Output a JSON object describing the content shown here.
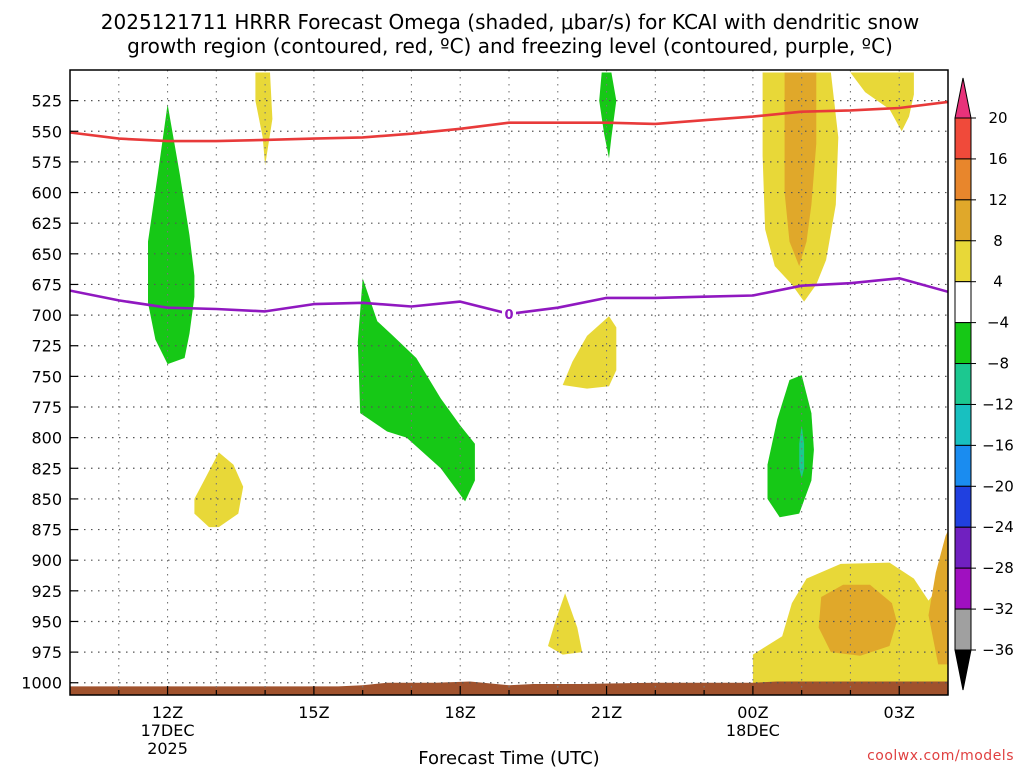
{
  "chart_data": {
    "type": "contour",
    "title_line1": "2025121711 HRRR Forecast Omega (shaded, μbar/s) for KCAI with dendritic snow",
    "title_line2": "growth region (contoured, red, ºC) and freezing level (contoured, purple, ºC)",
    "xlabel": "Forecast Time (UTC)",
    "credit": "coolwx.com/models",
    "x_range_hours": [
      10.0,
      28.0
    ],
    "y_range_mb": [
      500,
      1010
    ],
    "y_ticks": [
      525,
      550,
      575,
      600,
      625,
      650,
      675,
      700,
      725,
      750,
      775,
      800,
      825,
      850,
      875,
      900,
      925,
      950,
      975,
      1000
    ],
    "x_ticks": [
      {
        "h": 12,
        "label": "12Z",
        "sub1": "17DEC",
        "sub2": "2025"
      },
      {
        "h": 15,
        "label": "15Z",
        "sub1": "",
        "sub2": ""
      },
      {
        "h": 18,
        "label": "18Z",
        "sub1": "",
        "sub2": ""
      },
      {
        "h": 21,
        "label": "21Z",
        "sub1": "",
        "sub2": ""
      },
      {
        "h": 24,
        "label": "00Z",
        "sub1": "18DEC",
        "sub2": ""
      },
      {
        "h": 27,
        "label": "03Z",
        "sub1": "",
        "sub2": ""
      }
    ],
    "colorbar": {
      "labels": [
        "20",
        "16",
        "12",
        "8",
        "4",
        "−4",
        "−8",
        "−12",
        "−16",
        "−20",
        "−24",
        "−28",
        "−32",
        "−36"
      ],
      "colors": [
        "#e8327a",
        "#f04a3a",
        "#e8862c",
        "#e0a82a",
        "#e8d838",
        "#ffffff",
        "#16c816",
        "#1cc890",
        "#18c0c0",
        "#1a8cf0",
        "#2040e0",
        "#7020c0",
        "#a010c0",
        "#a0a0a0",
        "#000000"
      ]
    },
    "series": [
      {
        "name": "DGZ boundary (red, ºC)",
        "color": "#e83a3a",
        "points": [
          [
            10.0,
            551
          ],
          [
            11.0,
            556
          ],
          [
            12.0,
            558
          ],
          [
            13.0,
            558
          ],
          [
            14.0,
            557
          ],
          [
            15.0,
            556
          ],
          [
            16.0,
            555
          ],
          [
            17.0,
            552
          ],
          [
            18.0,
            548
          ],
          [
            19.0,
            543
          ],
          [
            20.0,
            543
          ],
          [
            21.0,
            543
          ],
          [
            22.0,
            544
          ],
          [
            23.0,
            541
          ],
          [
            24.0,
            538
          ],
          [
            25.0,
            534
          ],
          [
            26.0,
            533
          ],
          [
            27.0,
            531
          ],
          [
            28.0,
            526
          ]
        ]
      },
      {
        "name": "Freezing level (purple, ºC)",
        "color": "#9018c0",
        "label": "0",
        "label_h": 19.0,
        "points": [
          [
            10.0,
            680
          ],
          [
            11.0,
            688
          ],
          [
            12.0,
            694
          ],
          [
            13.0,
            695
          ],
          [
            14.0,
            697
          ],
          [
            15.0,
            691
          ],
          [
            16.0,
            690
          ],
          [
            17.0,
            693
          ],
          [
            18.0,
            689
          ],
          [
            19.0,
            699
          ],
          [
            20.0,
            694
          ],
          [
            21.0,
            686
          ],
          [
            22.0,
            686
          ],
          [
            23.0,
            685
          ],
          [
            24.0,
            684
          ],
          [
            25.0,
            676
          ],
          [
            26.0,
            674
          ],
          [
            27.0,
            670
          ],
          [
            28.0,
            681
          ]
        ]
      }
    ],
    "regions": [
      {
        "fill": "#e8d838",
        "pts": [
          [
            12.85,
            873
          ],
          [
            12.55,
            862
          ],
          [
            12.55,
            850
          ],
          [
            12.75,
            835
          ],
          [
            13.05,
            812
          ],
          [
            13.35,
            822
          ],
          [
            13.55,
            840
          ],
          [
            13.45,
            862
          ],
          [
            13.05,
            873
          ]
        ]
      },
      {
        "fill": "#e8d838",
        "pts": [
          [
            13.8,
            502
          ],
          [
            14.1,
            502
          ],
          [
            14.15,
            540
          ],
          [
            14.0,
            578
          ],
          [
            13.95,
            555
          ],
          [
            13.8,
            525
          ]
        ]
      },
      {
        "fill": "#16c816",
        "pts": [
          [
            11.6,
            640
          ],
          [
            11.8,
            585
          ],
          [
            12.0,
            528
          ],
          [
            12.25,
            585
          ],
          [
            12.45,
            635
          ],
          [
            12.55,
            668
          ],
          [
            12.55,
            685
          ],
          [
            12.45,
            715
          ],
          [
            12.35,
            735
          ],
          [
            12.0,
            740
          ],
          [
            11.75,
            720
          ],
          [
            11.6,
            690
          ]
        ]
      },
      {
        "fill": "#16c816",
        "pts": [
          [
            16.0,
            670
          ],
          [
            16.3,
            705
          ],
          [
            16.6,
            716
          ],
          [
            17.1,
            735
          ],
          [
            17.6,
            768
          ],
          [
            18.0,
            790
          ],
          [
            18.3,
            805
          ],
          [
            18.3,
            835
          ],
          [
            18.1,
            852
          ],
          [
            17.6,
            825
          ],
          [
            16.9,
            800
          ],
          [
            16.5,
            795
          ],
          [
            15.95,
            780
          ],
          [
            15.9,
            722
          ]
        ]
      },
      {
        "fill": "#16c816",
        "pts": [
          [
            20.9,
            502
          ],
          [
            21.1,
            502
          ],
          [
            21.2,
            525
          ],
          [
            21.1,
            555
          ],
          [
            21.05,
            572
          ],
          [
            20.95,
            552
          ],
          [
            20.85,
            525
          ]
        ]
      },
      {
        "fill": "#e8d838",
        "pts": [
          [
            20.1,
            757
          ],
          [
            20.3,
            738
          ],
          [
            20.6,
            717
          ],
          [
            21.05,
            701
          ],
          [
            21.2,
            710
          ],
          [
            21.2,
            745
          ],
          [
            21.05,
            758
          ],
          [
            20.6,
            760
          ]
        ]
      },
      {
        "fill": "#e8d838",
        "pts": [
          [
            24.2,
            502
          ],
          [
            25.6,
            502
          ],
          [
            25.75,
            555
          ],
          [
            25.7,
            610
          ],
          [
            25.5,
            655
          ],
          [
            25.3,
            675
          ],
          [
            25.05,
            689
          ],
          [
            24.8,
            675
          ],
          [
            24.45,
            660
          ],
          [
            24.25,
            630
          ],
          [
            24.2,
            570
          ]
        ]
      },
      {
        "fill": "#e0a82a",
        "pts": [
          [
            24.65,
            502
          ],
          [
            25.3,
            502
          ],
          [
            25.3,
            560
          ],
          [
            25.2,
            610
          ],
          [
            25.1,
            640
          ],
          [
            24.95,
            660
          ],
          [
            24.75,
            640
          ],
          [
            24.65,
            600
          ]
        ]
      },
      {
        "fill": "#16c816",
        "pts": [
          [
            24.3,
            822
          ],
          [
            24.5,
            785
          ],
          [
            24.75,
            753
          ],
          [
            25.0,
            749
          ],
          [
            25.2,
            780
          ],
          [
            25.25,
            810
          ],
          [
            25.2,
            835
          ],
          [
            24.95,
            862
          ],
          [
            24.55,
            865
          ],
          [
            24.3,
            850
          ]
        ]
      },
      {
        "fill": "#1cc890",
        "pts": [
          [
            24.95,
            805
          ],
          [
            25.0,
            790
          ],
          [
            25.05,
            805
          ],
          [
            25.05,
            825
          ],
          [
            25.0,
            833
          ],
          [
            24.95,
            825
          ]
        ]
      },
      {
        "fill": "#e8d838",
        "pts": [
          [
            26.0,
            502
          ],
          [
            27.3,
            502
          ],
          [
            27.3,
            520
          ],
          [
            27.2,
            538
          ],
          [
            27.05,
            550
          ],
          [
            26.8,
            532
          ],
          [
            26.3,
            518
          ]
        ]
      },
      {
        "fill": "#e8d838",
        "pts": [
          [
            19.8,
            970
          ],
          [
            19.95,
            950
          ],
          [
            20.15,
            927
          ],
          [
            20.4,
            955
          ],
          [
            20.5,
            975
          ],
          [
            20.1,
            977
          ]
        ]
      },
      {
        "fill": "#e8d838",
        "pts": [
          [
            24.0,
            977
          ],
          [
            24.6,
            962
          ],
          [
            24.8,
            935
          ],
          [
            25.1,
            915
          ],
          [
            25.8,
            903
          ],
          [
            26.8,
            902
          ],
          [
            27.3,
            915
          ],
          [
            27.6,
            933
          ],
          [
            27.85,
            920
          ],
          [
            28.0,
            900
          ],
          [
            28.2,
            870
          ],
          [
            28.2,
            1005
          ],
          [
            24.0,
            1005
          ]
        ]
      },
      {
        "fill": "#e0a82a",
        "pts": [
          [
            25.4,
            930
          ],
          [
            25.85,
            920
          ],
          [
            26.4,
            920
          ],
          [
            26.85,
            935
          ],
          [
            26.95,
            950
          ],
          [
            26.8,
            970
          ],
          [
            26.2,
            978
          ],
          [
            25.6,
            975
          ],
          [
            25.35,
            955
          ]
        ]
      },
      {
        "fill": "#e0a82a",
        "pts": [
          [
            27.8,
            985
          ],
          [
            27.6,
            945
          ],
          [
            27.75,
            910
          ],
          [
            27.95,
            880
          ],
          [
            28.2,
            860
          ],
          [
            28.2,
            985
          ]
        ]
      },
      {
        "fill": "#a0522d",
        "pts": [
          [
            10.0,
            1010
          ],
          [
            10.0,
            1003
          ],
          [
            13.0,
            1003
          ],
          [
            15.5,
            1003
          ],
          [
            16.0,
            1002
          ],
          [
            16.5,
            1000
          ],
          [
            17.5,
            1000
          ],
          [
            18.2,
            999
          ],
          [
            19.0,
            1002
          ],
          [
            19.5,
            1001
          ],
          [
            20.5,
            1001
          ],
          [
            22.0,
            1000
          ],
          [
            23.0,
            1000
          ],
          [
            24.0,
            1000
          ],
          [
            24.5,
            999
          ],
          [
            28.2,
            999
          ],
          [
            28.2,
            1010
          ]
        ]
      }
    ]
  }
}
